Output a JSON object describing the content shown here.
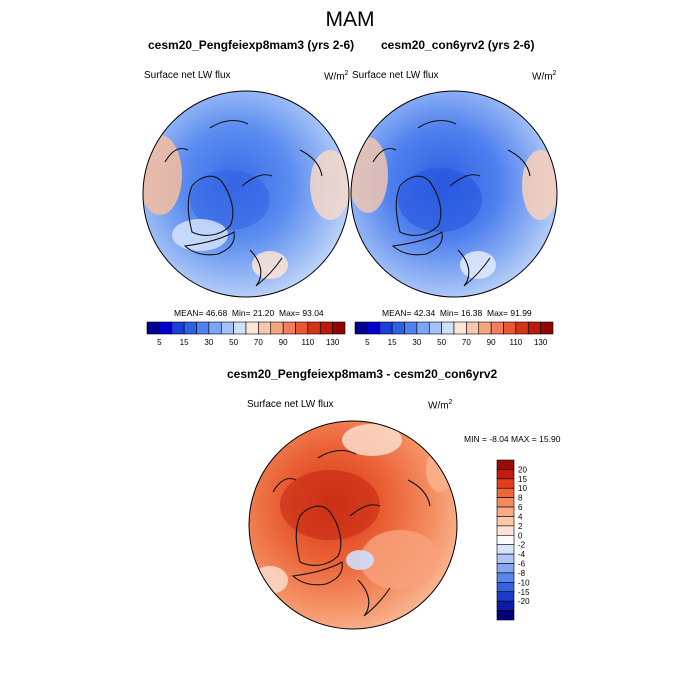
{
  "figure": {
    "title": "MAM"
  },
  "panels": [
    {
      "title": "cesm20_Pengfeiexp8mam3 (yrs 2-6)",
      "variable": "Surface net LW flux",
      "units_base": "W/m",
      "units_exp": "2",
      "stats": {
        "mean": "46.68",
        "min": "21.20",
        "max": "93.04"
      }
    },
    {
      "title": "cesm20_con6yrv2 (yrs 2-6)",
      "variable": "Surface net LW flux",
      "units_base": "W/m",
      "units_exp": "2",
      "stats": {
        "mean": "42.34",
        "min": "16.38",
        "max": "91.99"
      }
    },
    {
      "title": "cesm20_Pengfeiexp8mam3 - cesm20_con6yrv2",
      "variable": "Surface net LW flux",
      "units_base": "W/m",
      "units_exp": "2",
      "stats": {
        "min": "-8.04",
        "max": "15.90"
      }
    }
  ],
  "labels": {
    "mean": "MEAN=",
    "min": "Min=",
    "max": "Max=",
    "min_upper": "MIN =",
    "max_upper": "MAX ="
  },
  "colorbar_abs": {
    "colors": [
      "#00008c",
      "#0000cd",
      "#1a3fd6",
      "#2e62e6",
      "#4d82f0",
      "#7aa4f5",
      "#a5c2f7",
      "#cfdefa",
      "#fde6d9",
      "#f8c7ad",
      "#f4a584",
      "#ef7d5c",
      "#e85836",
      "#d6341a",
      "#b81a0c",
      "#8f0505"
    ],
    "tick_labels": [
      "5",
      "15",
      "30",
      "50",
      "70",
      "90",
      "110",
      "130"
    ]
  },
  "colorbar_diff": {
    "colors": [
      "#9c0b05",
      "#c51b0e",
      "#e23e1c",
      "#ef6539",
      "#f58b5d",
      "#f8ab84",
      "#fbc8aa",
      "#fde2d3",
      "#fbfbfd",
      "#d8e4fb",
      "#aec6f7",
      "#84a6f2",
      "#5a86ec",
      "#3463e2",
      "#1b3dcc",
      "#0c1aa8",
      "#00007a"
    ],
    "tick_labels": [
      "20",
      "15",
      "10",
      "8",
      "6",
      "4",
      "2",
      "0",
      "-2",
      "-4",
      "-6",
      "-8",
      "-10",
      "-15",
      "-20"
    ]
  }
}
